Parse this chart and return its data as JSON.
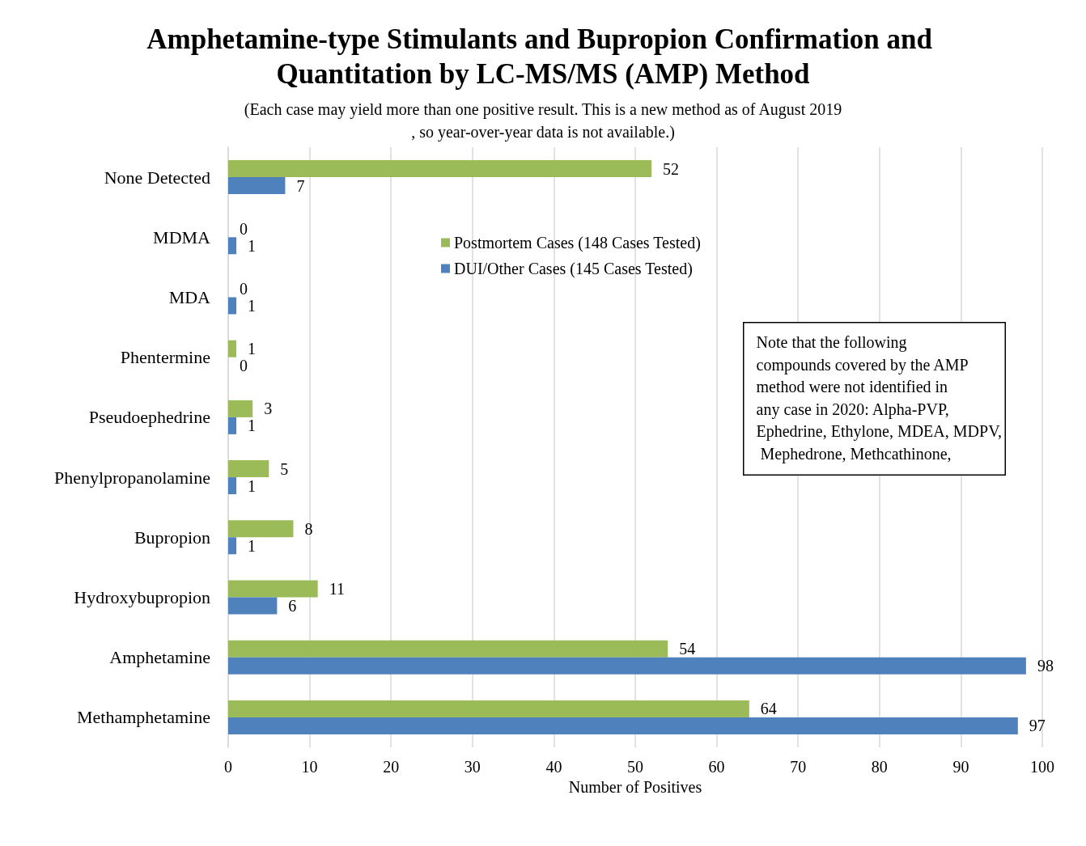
{
  "chart_data": {
    "type": "bar",
    "orientation": "horizontal",
    "title": "Amphetamine-type Stimulants and Bupropion Confirmation and Quantitation by LC-MS/MS (AMP) Method",
    "subtitle": "(Each case may yield more than one positive result. This is a new method as of August 2019, so year-over-year data is not available.)",
    "xlabel": "Number of Positives",
    "categories": [
      "None Detected",
      "MDMA",
      "MDA",
      "Phentermine",
      "Pseudoephedrine",
      "Phenylpropanolamine",
      "Bupropion",
      "Hydroxybupropion",
      "Amphetamine",
      "Methamphetamine"
    ],
    "series": [
      {
        "name": "Postmortem Cases (148 Cases Tested)",
        "color": "#9bbb59",
        "values": [
          52,
          0,
          0,
          1,
          3,
          5,
          8,
          11,
          54,
          64
        ]
      },
      {
        "name": "DUI/Other Cases (145 Cases Tested)",
        "color": "#4f81bd",
        "values": [
          7,
          1,
          1,
          0,
          1,
          1,
          1,
          6,
          98,
          97
        ]
      }
    ],
    "xlim": [
      0,
      100
    ],
    "xticks": [
      0,
      10,
      20,
      30,
      40,
      50,
      60,
      70,
      80,
      90,
      100
    ],
    "grid": "x",
    "legend": "top",
    "data_labels": true,
    "annotations": [
      "Note that the following compounds covered by the AMP method were not identified in any case in 2020: Alpha-PVP, Ephedrine, Ethylone, MDEA, MDPV, Mephedrone, Methcathinone,"
    ]
  }
}
